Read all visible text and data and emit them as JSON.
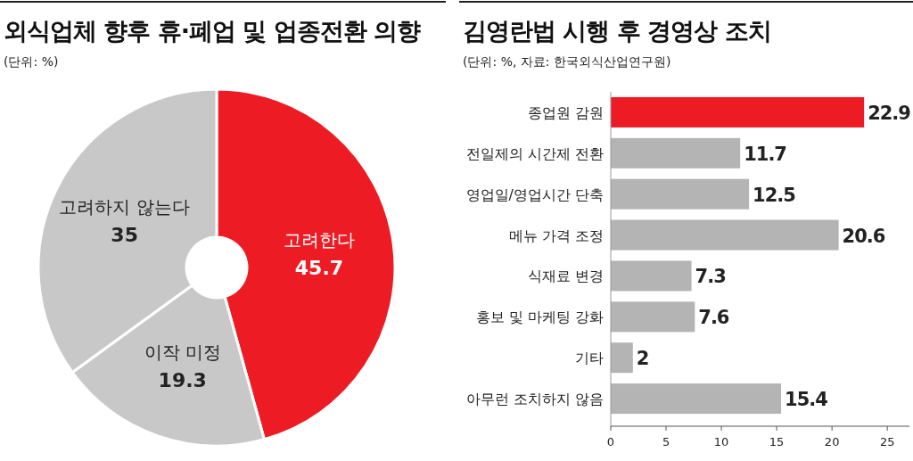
{
  "chart_data": [
    {
      "type": "donut",
      "title": "외식업체 향후 휴·폐업 및 업종전환 의향",
      "subtitle": "(단위: %)",
      "categories": [
        "고려한다",
        "이작 미정",
        "고려하지 않는다"
      ],
      "values": [
        45.7,
        19.3,
        35
      ],
      "colors": [
        "#ed1c24",
        "#c8c8c8",
        "#c8c8c8"
      ],
      "data_labels": true
    },
    {
      "type": "bar",
      "orientation": "horizontal",
      "title": "김영란법 시행 후 경영상 조치",
      "subtitle": "(단위: %, 자료: 한국외식산업연구원)",
      "categories": [
        "종업원 감원",
        "전일제의 시간제 전환",
        "영업일/영업시간 단축",
        "메뉴 가격 조정",
        "식재료 변경",
        "홍보 및 마케팅 강화",
        "기타",
        "아무런 조치하지 않음"
      ],
      "values": [
        22.9,
        11.7,
        12.5,
        20.6,
        7.3,
        7.6,
        2,
        15.4
      ],
      "colors": [
        "#ed1c24",
        "#b4b4b4",
        "#b4b4b4",
        "#b4b4b4",
        "#b4b4b4",
        "#b4b4b4",
        "#b4b4b4",
        "#b4b4b4"
      ],
      "data_labels": true,
      "xlim": [
        0,
        27
      ],
      "xticks": [
        0,
        5,
        10,
        15,
        20,
        25
      ]
    }
  ]
}
